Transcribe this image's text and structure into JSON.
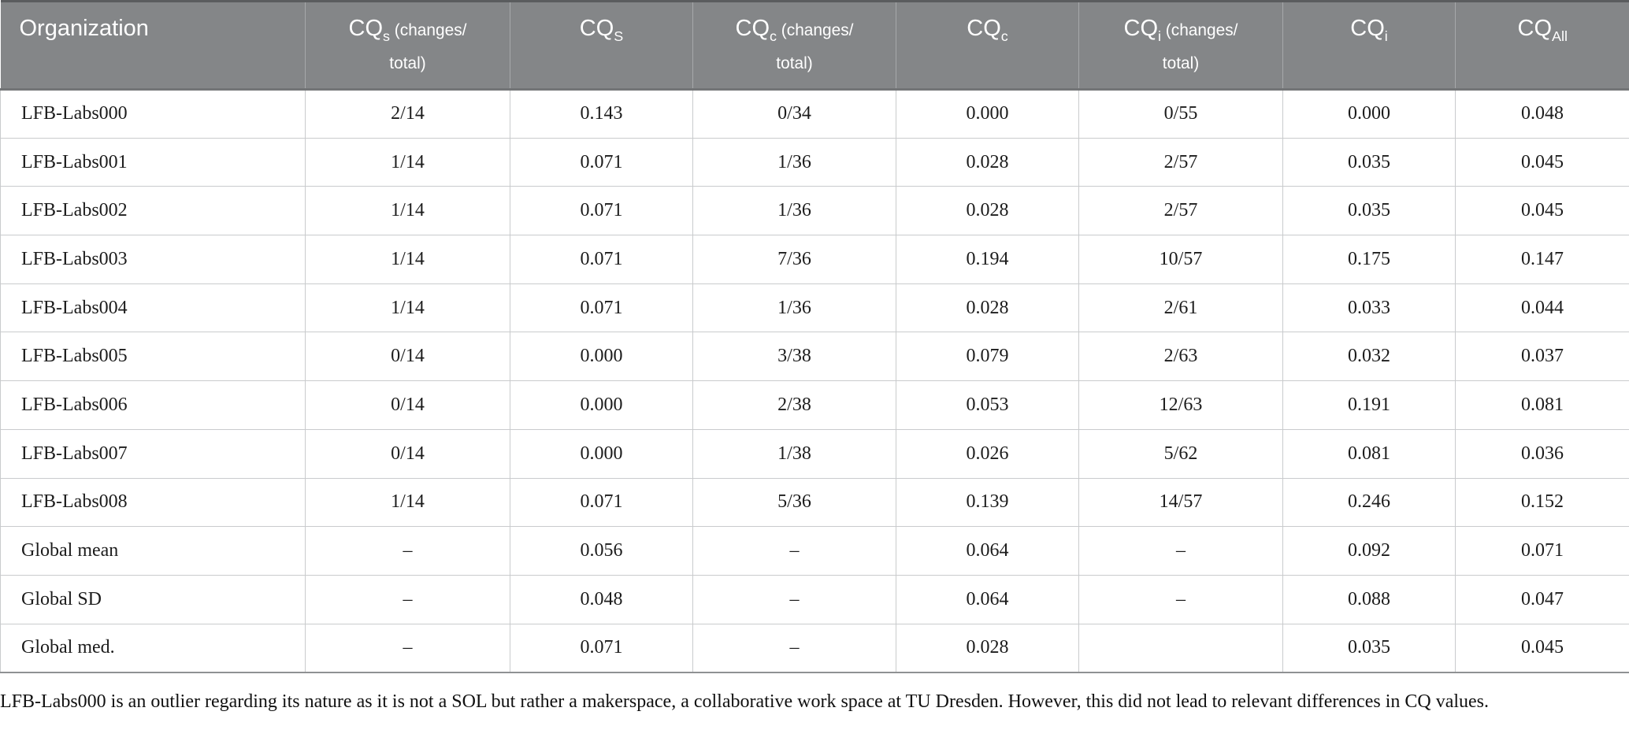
{
  "colors": {
    "header_bg": "#848688",
    "header_text": "#ffffff",
    "header_divider": "#a6a8aa",
    "header_bottom_rule": "#737577",
    "table_top_rule": "#5a5c5e",
    "grid_line": "#c9cbcd",
    "text": "#1c1c1c"
  },
  "table": {
    "columns": [
      {
        "key": "organization",
        "base": "Organization",
        "sub": "",
        "suffix_line1": "",
        "suffix_line2": ""
      },
      {
        "key": "cqs-ratio",
        "base": "CQ",
        "sub": "s",
        "suffix_line1": " (changes/",
        "suffix_line2": "total)"
      },
      {
        "key": "cqs",
        "base": "CQ",
        "sub": "S",
        "suffix_line1": "",
        "suffix_line2": ""
      },
      {
        "key": "cqc-ratio",
        "base": "CQ",
        "sub": "c",
        "suffix_line1": " (changes/",
        "suffix_line2": "total)"
      },
      {
        "key": "cqc",
        "base": "CQ",
        "sub": "c",
        "suffix_line1": "",
        "suffix_line2": ""
      },
      {
        "key": "cqi-ratio",
        "base": "CQ",
        "sub": "i",
        "suffix_line1": " (changes/",
        "suffix_line2": "total)"
      },
      {
        "key": "cqi",
        "base": "CQ",
        "sub": "i",
        "suffix_line1": "",
        "suffix_line2": ""
      },
      {
        "key": "cqall",
        "base": "CQ",
        "sub": "All",
        "suffix_line1": "",
        "suffix_line2": ""
      }
    ],
    "rows": [
      [
        "LFB-Labs000",
        "2/14",
        "0.143",
        "0/34",
        "0.000",
        "0/55",
        "0.000",
        "0.048"
      ],
      [
        "LFB-Labs001",
        "1/14",
        "0.071",
        "1/36",
        "0.028",
        "2/57",
        "0.035",
        "0.045"
      ],
      [
        "LFB-Labs002",
        "1/14",
        "0.071",
        "1/36",
        "0.028",
        "2/57",
        "0.035",
        "0.045"
      ],
      [
        "LFB-Labs003",
        "1/14",
        "0.071",
        "7/36",
        "0.194",
        "10/57",
        "0.175",
        "0.147"
      ],
      [
        "LFB-Labs004",
        "1/14",
        "0.071",
        "1/36",
        "0.028",
        "2/61",
        "0.033",
        "0.044"
      ],
      [
        "LFB-Labs005",
        "0/14",
        "0.000",
        "3/38",
        "0.079",
        "2/63",
        "0.032",
        "0.037"
      ],
      [
        "LFB-Labs006",
        "0/14",
        "0.000",
        "2/38",
        "0.053",
        "12/63",
        "0.191",
        "0.081"
      ],
      [
        "LFB-Labs007",
        "0/14",
        "0.000",
        "1/38",
        "0.026",
        "5/62",
        "0.081",
        "0.036"
      ],
      [
        "LFB-Labs008",
        "1/14",
        "0.071",
        "5/36",
        "0.139",
        "14/57",
        "0.246",
        "0.152"
      ],
      [
        "Global mean",
        "–",
        "0.056",
        "–",
        "0.064",
        "–",
        "0.092",
        "0.071"
      ],
      [
        "Global SD",
        "–",
        "0.048",
        "–",
        "0.064",
        "–",
        "0.088",
        "0.047"
      ],
      [
        "Global med.",
        "–",
        "0.071",
        "–",
        "0.028",
        "",
        "0.035",
        "0.045"
      ]
    ]
  },
  "footnote": "LFB-Labs000 is an outlier regarding its nature as it is not a SOL but rather a makerspace, a collaborative work space at TU Dresden. However, this did not lead to relevant differences in CQ values."
}
